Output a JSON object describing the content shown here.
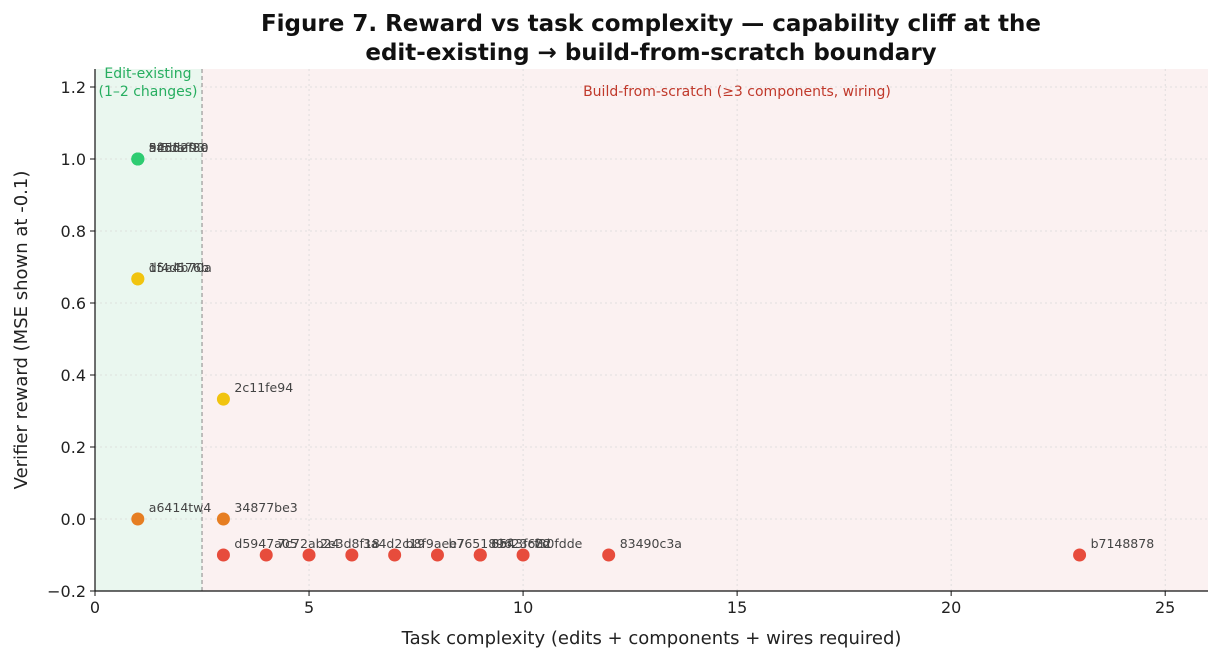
{
  "chart_data": {
    "type": "scatter",
    "title_lines": [
      "Figure 7. Reward vs task complexity — capability cliff at the",
      "edit-existing → build-from-scratch boundary"
    ],
    "xlabel": "Task complexity (edits + components + wires required)",
    "ylabel": "Verifier reward (MSE shown at -0.1)",
    "xlim": [
      0,
      26
    ],
    "ylim": [
      -0.2,
      1.25
    ],
    "xticks": [
      0,
      5,
      10,
      15,
      20,
      25
    ],
    "xtick_labels": [
      "0",
      "5",
      "10",
      "15",
      "20",
      "25"
    ],
    "yticks": [
      -0.2,
      0.0,
      0.2,
      0.4,
      0.6,
      0.8,
      1.0,
      1.2
    ],
    "ytick_labels": [
      "−0.2",
      "0.0",
      "0.2",
      "0.4",
      "0.6",
      "0.8",
      "1.0",
      "1.2"
    ],
    "grid": true,
    "boundary_x": 2.5,
    "regions": [
      {
        "label_lines": [
          "Edit-existing",
          "(1–2 changes)"
        ],
        "x_start": 0,
        "x_end": 2.5,
        "fill": "#eaf7ef",
        "text_color": "#27ae60"
      },
      {
        "label_lines": [
          "Build-from-scratch (≥3 components, wiring)"
        ],
        "x_start": 2.5,
        "x_end": 26,
        "fill": "#fbf1f1",
        "text_color": "#c0392b"
      }
    ],
    "colors": {
      "success": "#2ecc71",
      "partial": "#f1c40f",
      "zero": "#e67e22",
      "mse": "#e74c3c"
    },
    "points": [
      {
        "x": 1,
        "y": 1.0,
        "label": "5f5daf93",
        "color": "#2ecc71"
      },
      {
        "x": 1,
        "y": 1.0,
        "label": "9e5d2f30",
        "color": "#2ecc71"
      },
      {
        "x": 1,
        "y": 1.0,
        "label": "a4d5ef8e",
        "color": "#2ecc71"
      },
      {
        "x": 1,
        "y": 0.667,
        "label": "d5e4b70a",
        "color": "#f1c40f"
      },
      {
        "x": 1,
        "y": 0.667,
        "label": "1f4d576b",
        "color": "#f1c40f"
      },
      {
        "x": 3,
        "y": 0.333,
        "label": "2c11fe94",
        "color": "#f1c40f"
      },
      {
        "x": 1,
        "y": 0.0,
        "label": "a6414tw4",
        "color": "#e67e22"
      },
      {
        "x": 3,
        "y": 0.0,
        "label": "34877be3",
        "color": "#e67e22"
      },
      {
        "x": 3,
        "y": -0.1,
        "label": "d5947a05",
        "color": "#e74c3c"
      },
      {
        "x": 4,
        "y": -0.1,
        "label": "7c72ab24",
        "color": "#e74c3c"
      },
      {
        "x": 5,
        "y": -0.1,
        "label": "2e3d8f18",
        "color": "#e74c3c"
      },
      {
        "x": 6,
        "y": -0.1,
        "label": "3a4d2c19",
        "color": "#e74c3c"
      },
      {
        "x": 7,
        "y": -0.1,
        "label": "b8f9aee7",
        "color": "#e74c3c"
      },
      {
        "x": 8,
        "y": -0.1,
        "label": "b7651896",
        "color": "#e74c3c"
      },
      {
        "x": 9,
        "y": -0.1,
        "label": "8543f682",
        "color": "#e74c3c"
      },
      {
        "x": 9,
        "y": -0.1,
        "label": "6bf23c7d",
        "color": "#e74c3c"
      },
      {
        "x": 10,
        "y": -0.1,
        "label": "f30fdde",
        "color": "#e74c3c"
      },
      {
        "x": 12,
        "y": -0.1,
        "label": "83490c3a",
        "color": "#e74c3c"
      },
      {
        "x": 23,
        "y": -0.1,
        "label": "b7148878",
        "color": "#e74c3c"
      }
    ]
  }
}
